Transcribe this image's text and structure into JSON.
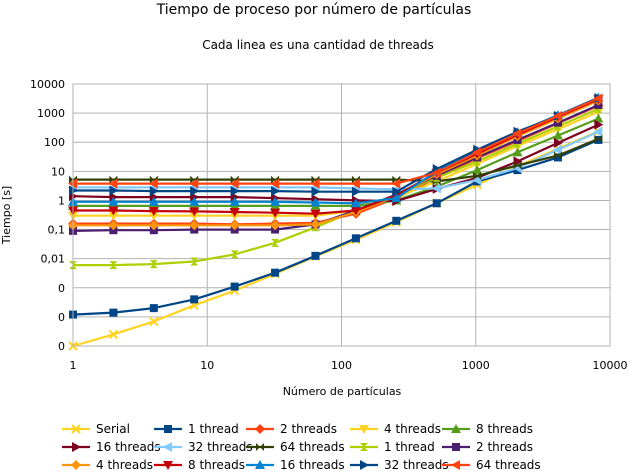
{
  "chart_data": {
    "type": "line",
    "title": "Tiempo de proceso por número de partículas",
    "subtitle": "Cada linea es una cantidad de threads",
    "xlabel": "Número de partículas",
    "ylabel": "Tiempo [s]",
    "x_scale": "log10",
    "y_scale": "log10",
    "xlim": [
      1,
      10000
    ],
    "ylim": [
      1e-05,
      10000
    ],
    "x": [
      1,
      2,
      4,
      8,
      16,
      32,
      64,
      128,
      256,
      512,
      1024,
      2048,
      4096,
      8192
    ],
    "x_ticks": [
      {
        "value": 1,
        "label": "1"
      },
      {
        "value": 10,
        "label": "10"
      },
      {
        "value": 100,
        "label": "100"
      },
      {
        "value": 1000,
        "label": "1000"
      },
      {
        "value": 10000,
        "label": "10000"
      }
    ],
    "y_ticks": [
      {
        "value": 1e-05,
        "label": "0"
      },
      {
        "value": 0.0001,
        "label": "0"
      },
      {
        "value": 0.001,
        "label": "0"
      },
      {
        "value": 0.01,
        "label": "0,01"
      },
      {
        "value": 0.1,
        "label": "0,1"
      },
      {
        "value": 1,
        "label": "1"
      },
      {
        "value": 10,
        "label": "10"
      },
      {
        "value": 100,
        "label": "100"
      },
      {
        "value": 1000,
        "label": "1000"
      },
      {
        "value": 10000,
        "label": "10000"
      }
    ],
    "grid": true,
    "legend_position": "bottom",
    "series": [
      {
        "name": "Serial",
        "color": "#ffd320",
        "marker": "x",
        "values": [
          1e-05,
          2.5e-05,
          7e-05,
          0.00025,
          0.0008,
          0.003,
          0.012,
          0.045,
          0.18,
          0.8,
          3.5,
          15,
          60,
          240
        ]
      },
      {
        "name": "1 thread",
        "color": "#004586",
        "marker": "square",
        "values": [
          0.00012,
          0.00014,
          0.0002,
          0.0004,
          0.0011,
          0.0033,
          0.0125,
          0.05,
          0.2,
          0.8,
          4.5,
          11,
          30,
          120
        ]
      },
      {
        "name": "2 threads",
        "color": "#ff420e",
        "marker": "diamond",
        "values": [
          0.16,
          0.16,
          0.16,
          0.16,
          0.15,
          0.16,
          0.17,
          0.35,
          1.2,
          6,
          28,
          110,
          450,
          1800
        ]
      },
      {
        "name": "4 threads",
        "color": "#ffd320",
        "marker": "triangle-down",
        "values": [
          0.3,
          0.3,
          0.3,
          0.3,
          0.3,
          0.3,
          0.3,
          0.45,
          1.3,
          4.5,
          18,
          75,
          280,
          1100
        ]
      },
      {
        "name": "8 threads",
        "color": "#579d1c",
        "marker": "triangle-up",
        "values": [
          0.65,
          0.65,
          0.65,
          0.65,
          0.65,
          0.65,
          0.65,
          0.65,
          1,
          3,
          11,
          45,
          170,
          650
        ]
      },
      {
        "name": "16 threads",
        "color": "#7e0021",
        "marker": "triangle-right",
        "values": [
          1.4,
          1.3,
          1.3,
          1.3,
          1.3,
          1.2,
          1.1,
          1,
          0.95,
          2.5,
          6,
          22,
          95,
          400
        ]
      },
      {
        "name": "32 threads",
        "color": "#83caff",
        "marker": "triangle-left",
        "values": [
          2.8,
          2.8,
          2.8,
          2.8,
          2.8,
          2.8,
          2.8,
          2.6,
          2.4,
          2.6,
          5,
          13,
          55,
          230
        ]
      },
      {
        "name": "64 threads",
        "color": "#314004",
        "marker": "bowtie",
        "values": [
          5.2,
          5.2,
          5.2,
          5.2,
          5.2,
          5.2,
          5.2,
          5.2,
          5.2,
          4.5,
          7,
          16,
          35,
          130
        ]
      },
      {
        "name": "1 thread",
        "color": "#aecf00",
        "marker": "hourglass",
        "values": [
          0.006,
          0.006,
          0.0065,
          0.008,
          0.014,
          0.035,
          0.12,
          0.45,
          1.6,
          6,
          22,
          90,
          350,
          1400
        ]
      },
      {
        "name": "2 threads",
        "color": "#4b1f6f",
        "marker": "square",
        "values": [
          0.09,
          0.095,
          0.095,
          0.1,
          0.1,
          0.1,
          0.15,
          0.45,
          1.6,
          7,
          30,
          120,
          470,
          1900
        ]
      },
      {
        "name": "4 threads",
        "color": "#ff950e",
        "marker": "diamond",
        "values": [
          0.14,
          0.14,
          0.14,
          0.14,
          0.14,
          0.14,
          0.15,
          0.4,
          1.4,
          8,
          35,
          160,
          650,
          2700
        ]
      },
      {
        "name": "8 threads",
        "color": "#c5000b",
        "marker": "triangle-down",
        "values": [
          0.45,
          0.45,
          0.43,
          0.42,
          0.4,
          0.38,
          0.35,
          0.45,
          1.5,
          9,
          40,
          180,
          750,
          3000
        ]
      },
      {
        "name": "16 threads",
        "color": "#0084d1",
        "marker": "triangle-up",
        "values": [
          0.9,
          0.9,
          0.9,
          0.9,
          0.9,
          0.9,
          0.85,
          0.8,
          1.2,
          10,
          50,
          220,
          850,
          3400
        ]
      },
      {
        "name": "32 threads",
        "color": "#004586",
        "marker": "triangle-right",
        "values": [
          2.2,
          2.2,
          2.1,
          2.1,
          2.1,
          2.1,
          2,
          2,
          2,
          12,
          55,
          230,
          800,
          3300
        ]
      },
      {
        "name": "64 threads",
        "color": "#ff420e",
        "marker": "triangle-left",
        "values": [
          3.8,
          3.8,
          3.8,
          3.8,
          3.8,
          3.8,
          3.8,
          3.8,
          3.8,
          9,
          45,
          200,
          800,
          3200
        ]
      }
    ]
  }
}
